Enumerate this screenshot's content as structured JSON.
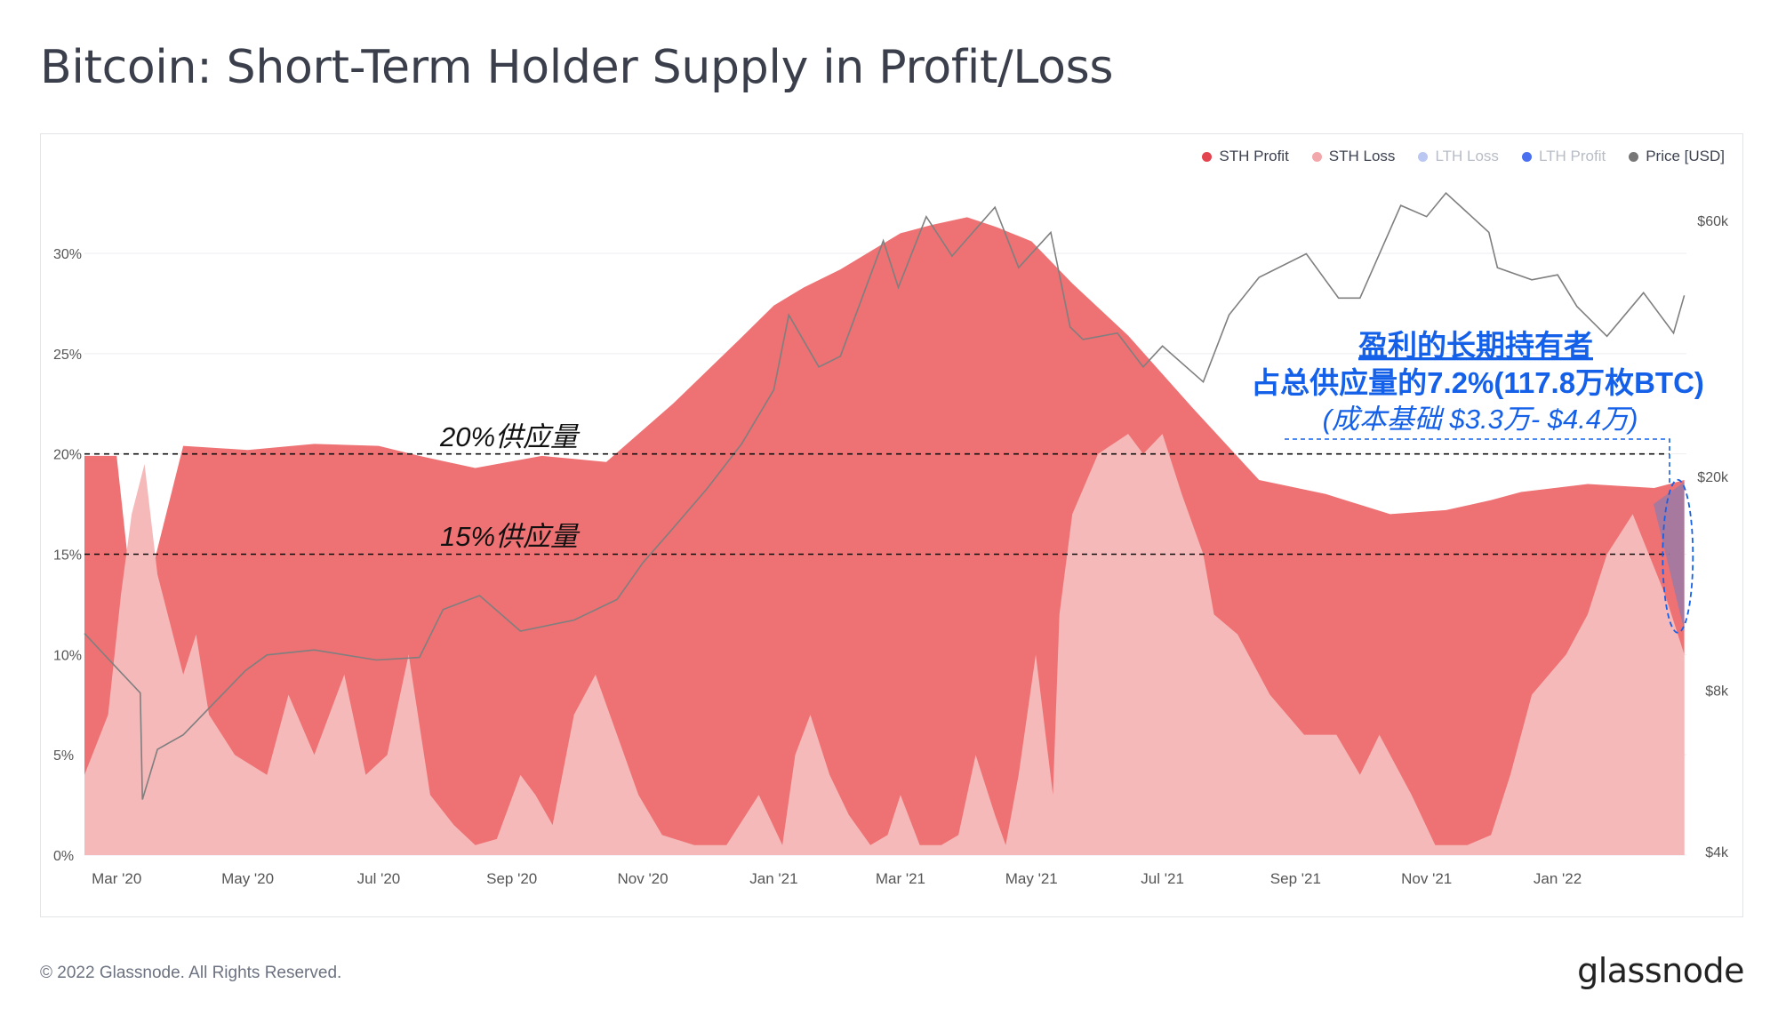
{
  "title": "Bitcoin: Short-Term Holder Supply in Profit/Loss",
  "footer": {
    "copyright": "© 2022 Glassnode. All Rights Reserved.",
    "brand": "glassnode"
  },
  "watermark": "glassnode",
  "legend": [
    {
      "label": "STH Profit",
      "color": "#e3444f",
      "active": true
    },
    {
      "label": "STH Loss",
      "color": "#f2a8ab",
      "active": true
    },
    {
      "label": "LTH Loss",
      "color": "#9fb4f2",
      "active": false
    },
    {
      "label": "LTH Profit",
      "color": "#4a6ff0",
      "active": false
    },
    {
      "label": "Price [USD]",
      "color": "#777777",
      "active": true
    }
  ],
  "annotations": {
    "line20_label": "20%供应量",
    "line15_label": "15%供应量",
    "lth_title": "盈利的长期持有者",
    "lth_share": "占总供应量的7.2%(117.8万枚BTC)",
    "lth_cost": "(成本基础 $3.3万- $4.4万)"
  },
  "chart_data": {
    "type": "area",
    "title": "Bitcoin: Short-Term Holder Supply in Profit/Loss",
    "x_ticks": [
      "Mar '20",
      "May '20",
      "Jul '20",
      "Sep '20",
      "Nov '20",
      "Jan '21",
      "Mar '21",
      "May '21",
      "Jul '21",
      "Sep '21",
      "Nov '21",
      "Jan '22"
    ],
    "x_range": [
      "2020-02-15",
      "2022-03-02"
    ],
    "y_left": {
      "ticks": [
        "0%",
        "5%",
        "10%",
        "15%",
        "20%",
        "25%",
        "30%"
      ],
      "range": [
        0,
        32
      ]
    },
    "y_right": {
      "scale": "log",
      "ticks": [
        "$4k",
        "$8k",
        "$20k",
        "$60k"
      ],
      "range": [
        4000,
        70000
      ]
    },
    "reference_lines": [
      20,
      15
    ],
    "series": [
      {
        "name": "STH Profit",
        "color": "#ee7173",
        "x": [
          "2020-02-15",
          "2020-03-01",
          "2020-03-10",
          "2020-04-01",
          "2020-05-01",
          "2020-06-01",
          "2020-07-01",
          "2020-07-20",
          "2020-08-15",
          "2020-09-15",
          "2020-10-15",
          "2020-11-15",
          "2020-12-15",
          "2021-01-01",
          "2021-01-15",
          "2021-02-01",
          "2021-03-01",
          "2021-03-15",
          "2021-04-01",
          "2021-04-15",
          "2021-05-01",
          "2021-05-20",
          "2021-06-15",
          "2021-07-15",
          "2021-08-15",
          "2021-09-15",
          "2021-10-15",
          "2021-11-10",
          "2021-12-01",
          "2021-12-15",
          "2022-01-15",
          "2022-02-15",
          "2022-03-01"
        ],
        "values": [
          19.9,
          19.9,
          11.0,
          20.4,
          20.2,
          20.5,
          20.4,
          19.9,
          19.3,
          19.9,
          19.6,
          22.5,
          25.6,
          27.4,
          28.3,
          29.2,
          31.0,
          31.4,
          31.8,
          31.3,
          30.6,
          28.5,
          25.9,
          22.3,
          18.7,
          18.0,
          17.0,
          17.2,
          17.7,
          18.1,
          18.5,
          18.3,
          18.7
        ]
      },
      {
        "name": "STH Loss",
        "color": "#f5b9ba",
        "x": [
          "2020-02-15",
          "2020-02-26",
          "2020-03-03",
          "2020-03-08",
          "2020-03-14",
          "2020-03-20",
          "2020-04-01",
          "2020-04-07",
          "2020-04-13",
          "2020-04-25",
          "2020-05-10",
          "2020-05-20",
          "2020-06-01",
          "2020-06-15",
          "2020-06-25",
          "2020-07-05",
          "2020-07-15",
          "2020-07-25",
          "2020-08-05",
          "2020-08-15",
          "2020-08-25",
          "2020-09-05",
          "2020-09-12",
          "2020-09-20",
          "2020-09-30",
          "2020-10-10",
          "2020-10-20",
          "2020-10-30",
          "2020-11-10",
          "2020-11-25",
          "2020-12-10",
          "2020-12-25",
          "2021-01-05",
          "2021-01-11",
          "2021-01-18",
          "2021-01-27",
          "2021-02-05",
          "2021-02-15",
          "2021-02-23",
          "2021-03-01",
          "2021-03-10",
          "2021-03-20",
          "2021-03-28",
          "2021-04-05",
          "2021-04-14",
          "2021-04-19",
          "2021-04-25",
          "2021-05-03",
          "2021-05-11",
          "2021-05-14",
          "2021-05-20",
          "2021-06-01",
          "2021-06-15",
          "2021-06-22",
          "2021-07-01",
          "2021-07-10",
          "2021-07-20",
          "2021-07-25",
          "2021-08-05",
          "2021-08-20",
          "2021-09-05",
          "2021-09-20",
          "2021-10-01",
          "2021-10-10",
          "2021-10-25",
          "2021-11-05",
          "2021-11-20",
          "2021-12-01",
          "2021-12-10",
          "2021-12-20",
          "2022-01-05",
          "2022-01-15",
          "2022-01-24",
          "2022-02-05",
          "2022-02-20",
          "2022-03-01"
        ],
        "values": [
          4,
          7,
          13,
          17,
          19.5,
          14,
          9,
          11,
          7,
          5,
          4,
          8,
          5,
          9,
          4,
          5,
          10,
          3,
          1.5,
          0.5,
          0.8,
          4,
          3,
          1.5,
          7,
          9,
          6,
          3,
          1,
          0.5,
          0.5,
          3,
          0.5,
          5,
          7,
          4,
          2,
          0.5,
          1,
          3,
          0.5,
          0.5,
          1,
          5,
          2,
          0.5,
          4,
          10,
          3,
          12,
          17,
          20,
          21,
          20,
          21,
          18,
          15,
          12,
          11,
          8,
          6,
          6,
          4,
          6,
          3,
          0.5,
          0.5,
          1,
          4,
          8,
          10,
          12,
          15,
          17,
          13,
          10
        ]
      },
      {
        "name": "Price [USD]",
        "color": "#7f7f7f",
        "x": [
          "2020-02-15",
          "2020-03-01",
          "2020-03-12",
          "2020-03-13",
          "2020-03-20",
          "2020-04-01",
          "2020-04-30",
          "2020-05-10",
          "2020-06-01",
          "2020-06-30",
          "2020-07-20",
          "2020-07-31",
          "2020-08-17",
          "2020-09-05",
          "2020-09-30",
          "2020-10-20",
          "2020-11-01",
          "2020-11-15",
          "2020-12-01",
          "2020-12-17",
          "2021-01-01",
          "2021-01-08",
          "2021-01-22",
          "2021-02-01",
          "2021-02-21",
          "2021-02-28",
          "2021-03-13",
          "2021-03-25",
          "2021-04-14",
          "2021-04-25",
          "2021-05-10",
          "2021-05-19",
          "2021-05-25",
          "2021-06-10",
          "2021-06-22",
          "2021-07-01",
          "2021-07-20",
          "2021-08-01",
          "2021-08-15",
          "2021-09-06",
          "2021-09-21",
          "2021-10-01",
          "2021-10-20",
          "2021-11-01",
          "2021-11-10",
          "2021-11-30",
          "2021-12-04",
          "2021-12-20",
          "2022-01-01",
          "2022-01-10",
          "2022-01-24",
          "2022-02-10",
          "2022-02-24",
          "2022-03-01"
        ],
        "values": [
          10200,
          8800,
          7900,
          5000,
          6200,
          6600,
          8700,
          9300,
          9500,
          9100,
          9200,
          11300,
          12000,
          10300,
          10800,
          11800,
          13800,
          16000,
          19000,
          23000,
          29000,
          40000,
          32000,
          33500,
          55000,
          45000,
          61000,
          51500,
          63500,
          49000,
          57000,
          38000,
          36000,
          37000,
          32000,
          35000,
          30000,
          40000,
          47000,
          52000,
          43000,
          43000,
          64000,
          61000,
          67500,
          57000,
          49000,
          46500,
          47500,
          41500,
          36500,
          44000,
          37000,
          43500
        ]
      },
      {
        "name": "LTH Profit",
        "note": "highlighted wedge at end of series",
        "x": [
          "2022-02-18",
          "2022-03-01"
        ],
        "values": [
          7.2,
          7.2
        ]
      }
    ]
  }
}
